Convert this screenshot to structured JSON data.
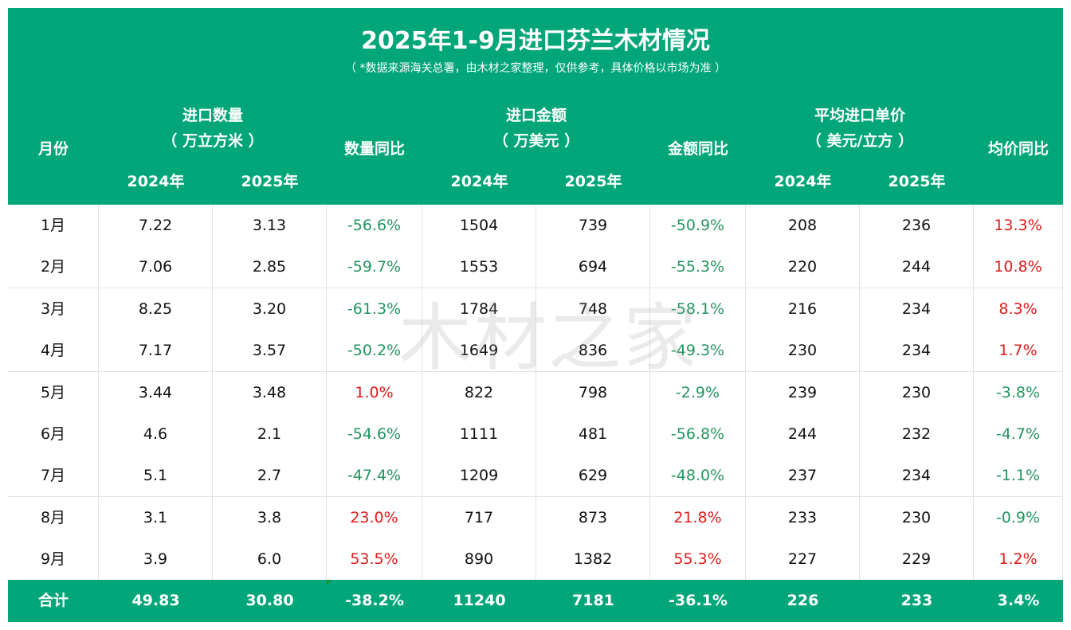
{
  "title": "2025年1-9月进口芬兰木材情况",
  "subtitle": "（ *数据来源海关总署，由木材之家整理，仅供参考，具体价格以市场为准 ）",
  "headers": {
    "month": "月份",
    "qty_line1": "进口数量",
    "qty_line2": "（ 万立方米 ）",
    "qty_yoy": "数量同比",
    "amt_line1": "进口金额",
    "amt_line2": "（ 万美元 ）",
    "amt_yoy": "金额同比",
    "price_line1": "平均进口单价",
    "price_line2": "（ 美元/立方 ）",
    "price_yoy": "均价同比",
    "y2024": "2024年",
    "y2025": "2025年"
  },
  "rows": [
    {
      "month": "1月",
      "q24": "7.22",
      "q25": "3.13",
      "qy": "-56.6%",
      "a24": "1504",
      "a25": "739",
      "ay": "-50.9%",
      "p24": "208",
      "p25": "236",
      "py": "13.3%"
    },
    {
      "month": "2月",
      "q24": "7.06",
      "q25": "2.85",
      "qy": "-59.7%",
      "a24": "1553",
      "a25": "694",
      "ay": "-55.3%",
      "p24": "220",
      "p25": "244",
      "py": "10.8%"
    },
    {
      "month": "3月",
      "q24": "8.25",
      "q25": "3.20",
      "qy": "-61.3%",
      "a24": "1784",
      "a25": "748",
      "ay": "-58.1%",
      "p24": "216",
      "p25": "234",
      "py": "8.3%"
    },
    {
      "month": "4月",
      "q24": "7.17",
      "q25": "3.57",
      "qy": "-50.2%",
      "a24": "1649",
      "a25": "836",
      "ay": "-49.3%",
      "p24": "230",
      "p25": "234",
      "py": "1.7%"
    },
    {
      "month": "5月",
      "q24": "3.44",
      "q25": "3.48",
      "qy": "1.0%",
      "a24": "822",
      "a25": "798",
      "ay": "-2.9%",
      "p24": "239",
      "p25": "230",
      "py": "-3.8%"
    },
    {
      "month": "6月",
      "q24": "4.6",
      "q25": "2.1",
      "qy": "-54.6%",
      "a24": "1111",
      "a25": "481",
      "ay": "-56.8%",
      "p24": "244",
      "p25": "232",
      "py": "-4.7%"
    },
    {
      "month": "7月",
      "q24": "5.1",
      "q25": "2.7",
      "qy": "-47.4%",
      "a24": "1209",
      "a25": "629",
      "ay": "-48.0%",
      "p24": "237",
      "p25": "234",
      "py": "-1.1%"
    },
    {
      "month": "8月",
      "q24": "3.1",
      "q25": "3.8",
      "qy": "23.0%",
      "a24": "717",
      "a25": "873",
      "ay": "21.8%",
      "p24": "233",
      "p25": "230",
      "py": "-0.9%"
    },
    {
      "month": "9月",
      "q24": "3.9",
      "q25": "6.0",
      "qy": "53.5%",
      "a24": "890",
      "a25": "1382",
      "ay": "55.3%",
      "p24": "227",
      "p25": "229",
      "py": "1.2%"
    }
  ],
  "total": {
    "month": "合计",
    "q24": "49.83",
    "q25": "30.80",
    "qy": "-38.2%",
    "a24": "11240",
    "a25": "7181",
    "ay": "-36.1%",
    "p24": "226",
    "p25": "233",
    "py": "3.4%"
  },
  "watermark": "木材之家",
  "colors": {
    "header_bg": "#02a678",
    "negative": "#22955f",
    "positive": "#e01b1b"
  }
}
